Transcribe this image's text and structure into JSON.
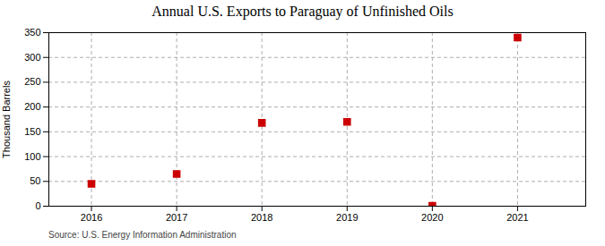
{
  "chart_data": {
    "type": "scatter",
    "title": "Annual U.S. Exports to Paraguay of Unfinished Oils",
    "ylabel": "Thousand Barrels",
    "annotations": [
      "Source: U.S. Energy Information Administration"
    ],
    "x": [
      2016,
      2017,
      2018,
      2019,
      2020,
      2021
    ],
    "values": [
      45,
      65,
      168,
      170,
      1,
      340
    ],
    "xlim": [
      2015.5,
      2021.8
    ],
    "xticks": [
      2016,
      2017,
      2018,
      2019,
      2020,
      2021
    ],
    "ylim": [
      0,
      350
    ],
    "yticks": [
      0,
      50,
      100,
      150,
      200,
      250,
      300,
      350
    ],
    "color": "#cc0000",
    "marker": "square",
    "grid": true
  }
}
